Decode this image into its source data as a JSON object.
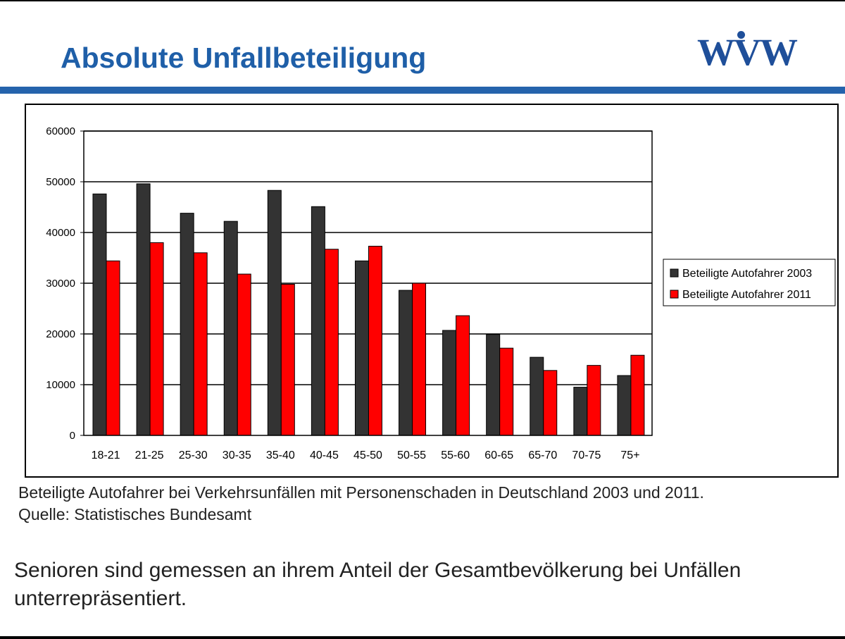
{
  "slide": {
    "title": "Absolute Unfallbeteiligung",
    "logo_text": "WVW",
    "caption_line1": "Beteiligte Autofahrer bei Verkehrsunfällen mit Personenschaden in Deutschland 2003 und 2011.",
    "caption_line2": "Quelle: Statistisches Bundesamt",
    "body_line1": "Senioren sind gemessen an ihrem Anteil der Gesamtbevölkerung bei Unfällen",
    "body_line2": "unterrepräsentiert."
  },
  "colors": {
    "title": "#1f5fa8",
    "rule": "#2563ac",
    "series_2003": "#333333",
    "series_2011": "#ff0000"
  },
  "chart_data": {
    "type": "bar",
    "title": "",
    "xlabel": "",
    "ylabel": "",
    "categories": [
      "18-21",
      "21-25",
      "25-30",
      "30-35",
      "35-40",
      "40-45",
      "45-50",
      "50-55",
      "55-60",
      "60-65",
      "65-70",
      "70-75",
      "75+"
    ],
    "series": [
      {
        "name": "Beteiligte Autofahrer 2003",
        "color": "#333333",
        "values": [
          47600,
          49600,
          43800,
          42200,
          48300,
          45100,
          34400,
          28600,
          20700,
          19900,
          15400,
          9500,
          11800
        ]
      },
      {
        "name": "Beteiligte Autofahrer 2011",
        "color": "#ff0000",
        "values": [
          34400,
          38000,
          36000,
          31800,
          29800,
          36700,
          37300,
          30000,
          23600,
          17200,
          12800,
          13800,
          15800
        ]
      }
    ],
    "ylim": [
      0,
      60000
    ],
    "yticks": [
      0,
      10000,
      20000,
      30000,
      40000,
      50000,
      60000
    ],
    "grid": true,
    "legend_position": "right"
  }
}
